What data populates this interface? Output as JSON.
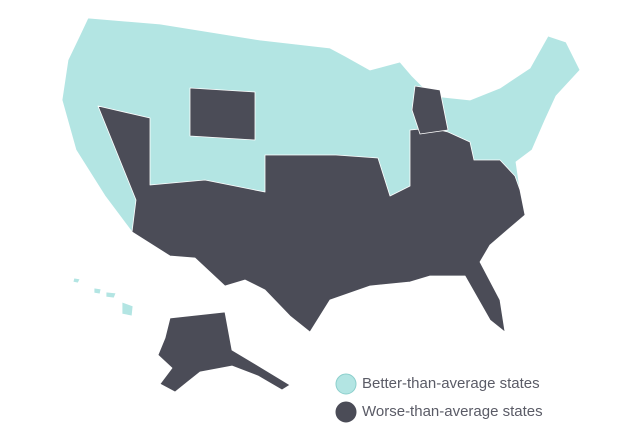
{
  "legend": [
    {
      "label": "Better-than-average states",
      "color": "#b3e5e3"
    },
    {
      "label": "Worse-than-average states",
      "color": "#4b4c57"
    }
  ]
}
